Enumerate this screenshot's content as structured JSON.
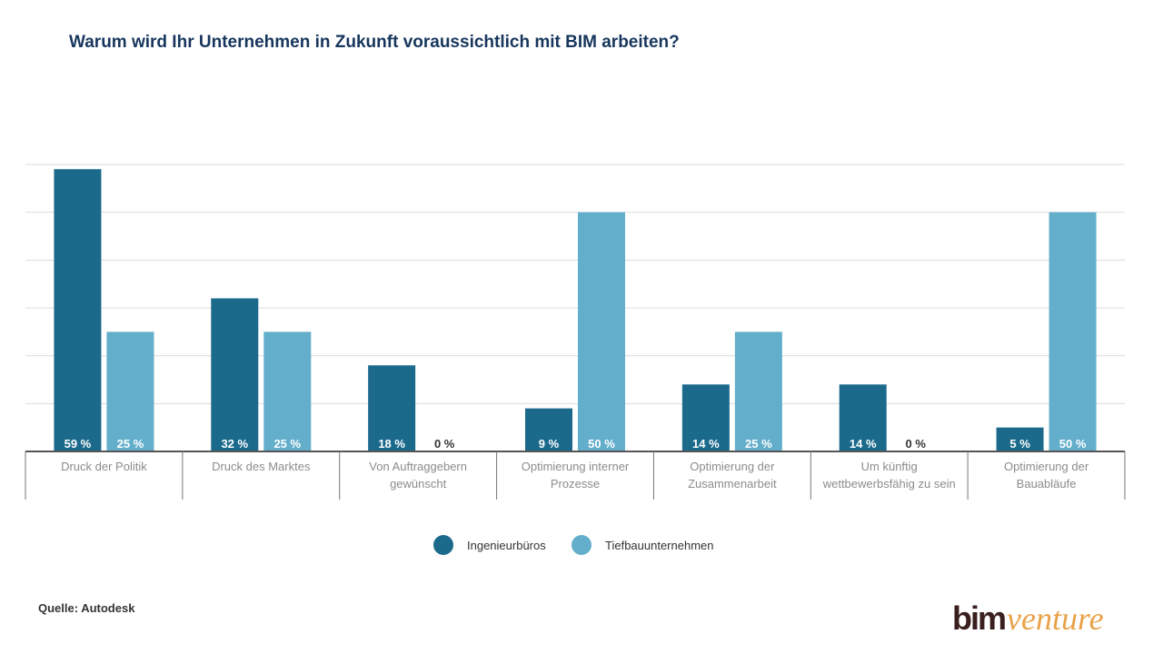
{
  "chart_data": {
    "type": "bar",
    "title": "Warum wird Ihr Unternehmen in Zukunft voraussichtlich mit BIM arbeiten?",
    "categories": [
      [
        "Druck der Politik"
      ],
      [
        "Druck des Marktes"
      ],
      [
        "Von Auftraggebern",
        "gewünscht"
      ],
      [
        "Optimierung interner",
        "Prozesse"
      ],
      [
        "Optimierung der",
        "Zusammenarbeit"
      ],
      [
        "Um künftig",
        "wettbewerbsfähig zu sein"
      ],
      [
        "Optimierung der",
        "Bauabläufe"
      ]
    ],
    "series": [
      {
        "name": "Ingenieurbüros",
        "color": "#1b6a8c",
        "values": [
          59,
          32,
          18,
          9,
          14,
          14,
          5
        ],
        "labels": [
          "59 %",
          "32 %",
          "18 %",
          "9 %",
          "14 %",
          "14 %",
          "5 %"
        ]
      },
      {
        "name": "Tiefbauunternehmen",
        "color": "#63aecb",
        "values": [
          25,
          25,
          0,
          50,
          25,
          0,
          50
        ],
        "labels": [
          "25 %",
          "25 %",
          "0 %",
          "50 %",
          "25 %",
          "0 %",
          "50 %"
        ]
      }
    ],
    "ylim": [
      0,
      60
    ],
    "grid": true,
    "legend_position": "bottom"
  },
  "source": "Quelle: Autodesk",
  "logo": {
    "part1": "bim",
    "part2": "venture"
  }
}
